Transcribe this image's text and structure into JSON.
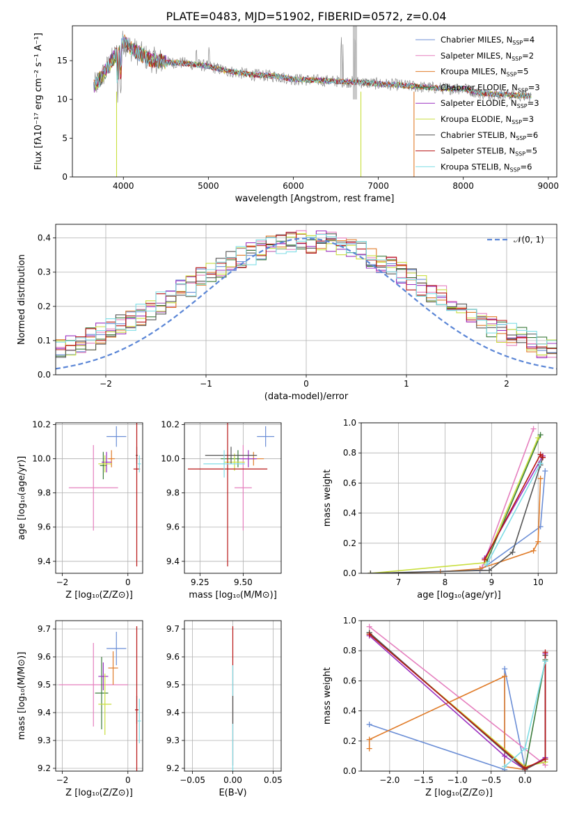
{
  "figure": {
    "title": "PLATE=0483, MJD=51902, FIBERID=0572, z=0.04"
  },
  "models": [
    {
      "name": "Chabrier MILES",
      "nssp": "4",
      "color": "#6b8ed6"
    },
    {
      "name": "Salpeter MILES",
      "nssp": "2",
      "color": "#e57fbe"
    },
    {
      "name": "Kroupa MILES",
      "nssp": "5",
      "color": "#e07b28"
    },
    {
      "name": "Chabrier ELODIE",
      "nssp": "3",
      "color": "#3a7a3a"
    },
    {
      "name": "Salpeter ELODIE",
      "nssp": "3",
      "color": "#9b30c0"
    },
    {
      "name": "Kroupa ELODIE",
      "nssp": "3",
      "color": "#c8de3c"
    },
    {
      "name": "Chabrier STELIB",
      "nssp": "6",
      "color": "#555555"
    },
    {
      "name": "Salpeter STELIB",
      "nssp": "5",
      "color": "#b81414"
    },
    {
      "name": "Kroupa STELIB",
      "nssp": "6",
      "color": "#7fdde6"
    }
  ],
  "chart_data": [
    {
      "id": "spectrum",
      "type": "line",
      "title": "PLATE=0483, MJD=51902, FIBERID=0572, z=0.04",
      "xlabel": "wavelength [Angstrom, rest frame]",
      "ylabel": "Flux [fλ10⁻¹⁷ erg cm⁻² s⁻¹ A⁻¹]",
      "xlim": [
        3400,
        9100
      ],
      "ylim": [
        0,
        19.5
      ],
      "xticks": [
        4000,
        5000,
        6000,
        7000,
        8000,
        9000
      ],
      "yticks": [
        0,
        5,
        10,
        15
      ],
      "grid": false,
      "legend_position": "top-right",
      "data_range": [
        3650,
        8800
      ],
      "spectrum_continuum": {
        "x": [
          3650,
          3750,
          3850,
          3950,
          4000,
          4100,
          4300,
          4500,
          4700,
          5000,
          5200,
          5500,
          5800,
          6000,
          6200,
          6400,
          6600,
          6800,
          7000,
          7200,
          7500,
          7800,
          8000,
          8200,
          8500,
          8800
        ],
        "y": [
          11.5,
          13.0,
          14.8,
          16.2,
          17.5,
          16.5,
          15.2,
          14.8,
          14.7,
          14.3,
          13.7,
          13.2,
          13.0,
          12.6,
          12.5,
          12.4,
          12.3,
          12.2,
          12.0,
          11.9,
          11.6,
          11.4,
          11.4,
          10.8,
          10.6,
          10.4
        ]
      },
      "emission_lines_x": [
        6563,
        6584,
        6717,
        6731
      ]
    },
    {
      "id": "residuals",
      "type": "step",
      "xlabel": "(data-model)/error",
      "ylabel": "Normed distribution",
      "xlim": [
        -2.5,
        2.5
      ],
      "ylim": [
        0,
        0.44
      ],
      "xticks": [
        -2,
        -1,
        0,
        1,
        2
      ],
      "yticks": [
        0.0,
        0.1,
        0.2,
        0.3,
        0.4
      ],
      "grid": true,
      "legend_position": "top-right",
      "normal_curve": {
        "name": "𝒩(0, 1)",
        "mean": 0,
        "sigma": 1
      },
      "bins": {
        "start": -2.5,
        "width": 0.1,
        "count": 50
      }
    },
    {
      "id": "age-vs-Z",
      "type": "errorbar",
      "xlabel": "Z [log₁₀(Z/Z⊙)]",
      "ylabel": "age  [log₁₀(age/yr)]",
      "xlim": [
        -2.2,
        0.45
      ],
      "ylim": [
        9.33,
        10.21
      ],
      "xticks": [
        -2,
        0
      ],
      "yticks": [
        9.4,
        9.6,
        9.8,
        10.0,
        10.2
      ],
      "grid": true,
      "points": [
        {
          "m": 0,
          "x": -0.35,
          "y": 10.13,
          "xe": 0.3,
          "ye": 0.06
        },
        {
          "m": 1,
          "x": -1.05,
          "y": 9.83,
          "xe": 0.75,
          "ye": 0.25
        },
        {
          "m": 2,
          "x": -0.5,
          "y": 10.0,
          "xe": 0.1,
          "ye": 0.05
        },
        {
          "m": 3,
          "x": -0.75,
          "y": 9.96,
          "xe": 0.1,
          "ye": 0.08
        },
        {
          "m": 4,
          "x": -0.65,
          "y": 9.98,
          "xe": 0.15,
          "ye": 0.06
        },
        {
          "m": 5,
          "x": -0.7,
          "y": 9.97,
          "xe": 0.2,
          "ye": 0.05
        },
        {
          "m": 6,
          "x": 0.27,
          "y": 10.02,
          "xe": 0.03,
          "ye": 0.05
        },
        {
          "m": 7,
          "x": 0.27,
          "y": 9.94,
          "xe": 0.1,
          "ye": 0.57
        },
        {
          "m": 8,
          "x": 0.35,
          "y": 9.97,
          "xe": 0.05,
          "ye": 0.05
        }
      ]
    },
    {
      "id": "age-vs-mass",
      "type": "errorbar",
      "xlabel": "mass [log₁₀(M/M⊙)]",
      "ylabel": "",
      "xlim": [
        9.16,
        9.72
      ],
      "ylim": [
        9.33,
        10.21
      ],
      "xticks": [
        9.25,
        9.5
      ],
      "yticks": [
        9.4,
        9.6,
        9.8,
        10.0,
        10.2
      ],
      "grid": true,
      "points": [
        {
          "m": 0,
          "x": 9.63,
          "y": 10.13,
          "xe": 0.05,
          "ye": 0.06
        },
        {
          "m": 1,
          "x": 9.5,
          "y": 9.83,
          "xe": 0.05,
          "ye": 0.25
        },
        {
          "m": 2,
          "x": 9.56,
          "y": 10.0,
          "xe": 0.06,
          "ye": 0.04
        },
        {
          "m": 3,
          "x": 9.47,
          "y": 10.0,
          "xe": 0.1,
          "ye": 0.05
        },
        {
          "m": 4,
          "x": 9.53,
          "y": 10.0,
          "xe": 0.05,
          "ye": 0.05
        },
        {
          "m": 5,
          "x": 9.45,
          "y": 9.98,
          "xe": 0.06,
          "ye": 0.05
        },
        {
          "m": 6,
          "x": 9.43,
          "y": 10.02,
          "xe": 0.15,
          "ye": 0.05
        },
        {
          "m": 7,
          "x": 9.41,
          "y": 9.94,
          "xe": 0.23,
          "ye": 0.57
        },
        {
          "m": 8,
          "x": 9.39,
          "y": 9.97,
          "xe": 0.12,
          "ye": 0.08
        }
      ]
    },
    {
      "id": "weight-vs-age",
      "type": "line",
      "xlabel": "age  [log₁₀(age/yr)]",
      "ylabel": "mass weight",
      "xlim": [
        6.2,
        10.4
      ],
      "ylim": [
        0,
        1.0
      ],
      "xticks": [
        7,
        8,
        9,
        10
      ],
      "yticks": [
        0.0,
        0.2,
        0.4,
        0.6,
        0.8,
        1.0
      ],
      "grid": true,
      "series": [
        {
          "m": 0,
          "x": [
            6.4,
            8.75,
            10.05,
            10.15
          ],
          "y": [
            0.0,
            0.02,
            0.31,
            0.68
          ]
        },
        {
          "m": 1,
          "x": [
            8.8,
            9.9
          ],
          "y": [
            0.04,
            0.96
          ]
        },
        {
          "m": 2,
          "x": [
            6.4,
            7.9,
            8.75,
            9.9,
            10.0,
            10.05
          ],
          "y": [
            0.0,
            0.01,
            0.03,
            0.15,
            0.21,
            0.63
          ]
        },
        {
          "m": 3,
          "x": [
            8.9,
            10.05
          ],
          "y": [
            0.08,
            0.92
          ]
        },
        {
          "m": 4,
          "x": [
            8.85,
            10.1
          ],
          "y": [
            0.1,
            0.78
          ]
        },
        {
          "m": 5,
          "x": [
            6.4,
            8.85,
            10.0
          ],
          "y": [
            0.0,
            0.07,
            0.9
          ]
        },
        {
          "m": 6,
          "x": [
            6.4,
            8.95,
            9.45,
            10.05,
            10.1
          ],
          "y": [
            0.0,
            0.02,
            0.14,
            0.72,
            0.77
          ]
        },
        {
          "m": 7,
          "x": [
            8.85,
            10.05,
            10.1
          ],
          "y": [
            0.09,
            0.79,
            0.77
          ]
        },
        {
          "m": 8,
          "x": [
            8.9,
            10.05
          ],
          "y": [
            0.06,
            0.73
          ]
        }
      ]
    },
    {
      "id": "mass-vs-Z",
      "type": "errorbar",
      "xlabel": "Z [log₁₀(Z/Z⊙)]",
      "ylabel": "mass [log₁₀(M/M⊙)]",
      "xlim": [
        -2.2,
        0.45
      ],
      "ylim": [
        9.19,
        9.73
      ],
      "xticks": [
        -2,
        0
      ],
      "yticks": [
        9.2,
        9.3,
        9.4,
        9.5,
        9.6,
        9.7
      ],
      "grid": true,
      "points": [
        {
          "m": 0,
          "x": -0.35,
          "y": 9.63,
          "xe": 0.3,
          "ye": 0.06
        },
        {
          "m": 1,
          "x": -1.05,
          "y": 9.5,
          "xe": 1.05,
          "ye": 0.15
        },
        {
          "m": 2,
          "x": -0.45,
          "y": 9.56,
          "xe": 0.15,
          "ye": 0.06
        },
        {
          "m": 3,
          "x": -0.8,
          "y": 9.47,
          "xe": 0.2,
          "ye": 0.13
        },
        {
          "m": 4,
          "x": -0.75,
          "y": 9.53,
          "xe": 0.15,
          "ye": 0.05
        },
        {
          "m": 5,
          "x": -0.7,
          "y": 9.43,
          "xe": 0.2,
          "ye": 0.11
        },
        {
          "m": 6,
          "x": 0.27,
          "y": 9.41,
          "xe": 0.05,
          "ye": 0.05
        },
        {
          "m": 7,
          "x": 0.27,
          "y": 9.41,
          "xe": 0.05,
          "ye": 0.3
        },
        {
          "m": 8,
          "x": 0.35,
          "y": 9.37,
          "xe": 0.05,
          "ye": 0.08
        }
      ]
    },
    {
      "id": "mass-vs-ebv",
      "type": "errorbar",
      "xlabel": "E(B-V)",
      "ylabel": "",
      "xlim": [
        -0.06,
        0.06
      ],
      "ylim": [
        9.19,
        9.73
      ],
      "xticks": [
        -0.05,
        0.0,
        0.05
      ],
      "yticks": [
        9.2,
        9.3,
        9.4,
        9.5,
        9.6,
        9.7
      ],
      "grid": true,
      "points": [
        {
          "m": 7,
          "x": 0.0,
          "y": 9.46,
          "xe": 0.0,
          "ye": 0.25
        },
        {
          "m": 8,
          "x": 0.0,
          "y": 9.37,
          "xe": 0.0,
          "ye": 0.2
        },
        {
          "m": 6,
          "x": 0.0,
          "y": 9.41,
          "xe": 0.0,
          "ye": 0.05
        }
      ]
    },
    {
      "id": "weight-vs-Z",
      "type": "line",
      "xlabel": "Z [log₁₀(Z/Z⊙)]",
      "ylabel": "mass weight",
      "xlim": [
        -2.42,
        0.47
      ],
      "ylim": [
        0,
        1.0
      ],
      "xticks": [
        -2.0,
        -1.5,
        -1.0,
        -0.5,
        0.0
      ],
      "yticks": [
        0.0,
        0.2,
        0.4,
        0.6,
        0.8,
        1.0
      ],
      "grid": true,
      "series": [
        {
          "m": 0,
          "x": [
            -2.3,
            -0.3,
            -0.3,
            0.0
          ],
          "y": [
            0.31,
            0.01,
            0.68,
            0.02
          ]
        },
        {
          "m": 1,
          "x": [
            -2.3,
            0.3
          ],
          "y": [
            0.96,
            0.04
          ]
        },
        {
          "m": 2,
          "x": [
            -2.3,
            -2.3,
            -0.3,
            -0.3,
            0.0,
            0.3
          ],
          "y": [
            0.15,
            0.21,
            0.63,
            0.03,
            0.01,
            0.08
          ]
        },
        {
          "m": 3,
          "x": [
            -2.3,
            0.0,
            0.3
          ],
          "y": [
            0.92,
            0.01,
            0.74
          ]
        },
        {
          "m": 4,
          "x": [
            -2.3,
            -0.3,
            0.0,
            0.3,
            0.3
          ],
          "y": [
            0.9,
            0.1,
            0.01,
            0.09,
            0.78
          ]
        },
        {
          "m": 5,
          "x": [
            -2.3,
            0.0,
            0.3
          ],
          "y": [
            0.91,
            0.03,
            0.06
          ]
        },
        {
          "m": 6,
          "x": [
            -2.3,
            0.0,
            0.3,
            0.3
          ],
          "y": [
            0.92,
            0.01,
            0.08,
            0.77
          ]
        },
        {
          "m": 7,
          "x": [
            -2.3,
            0.0,
            0.3,
            0.3
          ],
          "y": [
            0.91,
            0.02,
            0.08,
            0.79
          ]
        },
        {
          "m": 8,
          "x": [
            -0.3,
            0.0,
            0.3
          ],
          "y": [
            0.03,
            0.15,
            0.73
          ]
        }
      ]
    }
  ]
}
